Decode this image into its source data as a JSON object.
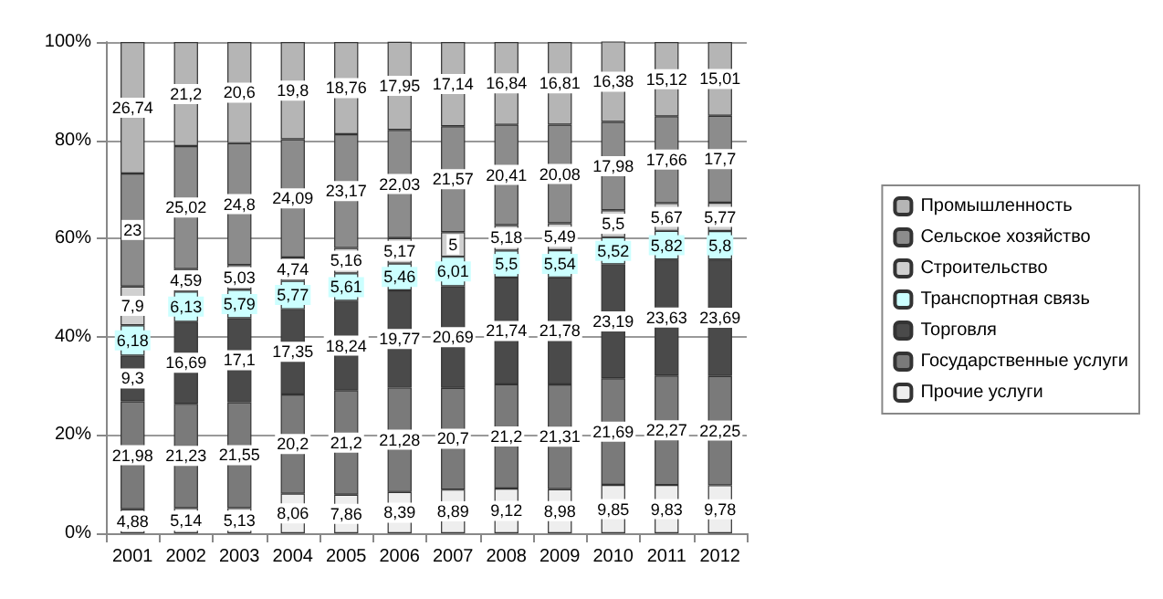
{
  "chart_data": {
    "type": "bar",
    "stacked": true,
    "categories": [
      "2001",
      "2002",
      "2003",
      "2004",
      "2005",
      "2006",
      "2007",
      "2008",
      "2009",
      "2010",
      "2011",
      "2012"
    ],
    "ylim": [
      0,
      100
    ],
    "yticks": [
      {
        "value": 0,
        "label": "0%"
      },
      {
        "value": 20,
        "label": "20%"
      },
      {
        "value": 40,
        "label": "40%"
      },
      {
        "value": 60,
        "label": "60%"
      },
      {
        "value": 80,
        "label": "80%"
      },
      {
        "value": 100,
        "label": "100%"
      }
    ],
    "grid": "y",
    "legend": "right",
    "series": [
      {
        "name": "Прочие услуги",
        "color": "#eeeeee",
        "values": [
          4.88,
          5.14,
          5.13,
          8.06,
          7.86,
          8.39,
          8.89,
          9.12,
          8.98,
          9.85,
          9.83,
          9.78
        ],
        "value_labels": [
          "4,88",
          "5,14",
          "5,13",
          "8,06",
          "7,86",
          "8,39",
          "8,89",
          "9,12",
          "8,98",
          "9,85",
          "9,83",
          "9,78"
        ]
      },
      {
        "name": "Государственные услуги",
        "color": "#7a7a7a",
        "values": [
          21.98,
          21.23,
          21.55,
          20.2,
          21.2,
          21.28,
          20.7,
          21.2,
          21.31,
          21.69,
          22.27,
          22.25
        ],
        "value_labels": [
          "21,98",
          "21,23",
          "21,55",
          "20,2",
          "21,2",
          "21,28",
          "20,7",
          "21,2",
          "21,31",
          "21,69",
          "22,27",
          "22,25"
        ]
      },
      {
        "name": "Торговля",
        "color": "#4a4a4a",
        "values": [
          9.3,
          16.69,
          17.1,
          17.35,
          18.24,
          19.77,
          20.69,
          21.74,
          21.78,
          23.19,
          23.63,
          23.69
        ],
        "value_labels": [
          "9,3",
          "16,69",
          "17,1",
          "17,35",
          "18,24",
          "19,77",
          "20,69",
          "21,74",
          "21,78",
          "23,19",
          "23,63",
          "23,69"
        ]
      },
      {
        "name": "Транспортная связь",
        "color": "#ccffff",
        "values": [
          6.18,
          6.13,
          5.79,
          5.77,
          5.61,
          5.46,
          6.01,
          5.5,
          5.54,
          5.52,
          5.82,
          5.8
        ],
        "value_labels": [
          "6,18",
          "6,13",
          "5,79",
          "5,77",
          "5,61",
          "5,46",
          "6,01",
          "5,5",
          "5,54",
          "5,52",
          "5,82",
          "5,8"
        ]
      },
      {
        "name": "Строительство",
        "color": "#d0d0d0",
        "values": [
          7.9,
          4.59,
          5.03,
          4.74,
          5.16,
          5.17,
          5,
          5.18,
          5.49,
          5.5,
          5.67,
          5.77
        ],
        "value_labels": [
          "7,9",
          "4,59",
          "5,03",
          "4,74",
          "5,16",
          "5,17",
          "5",
          "5,18",
          "5,49",
          "5,5",
          "5,67",
          "5,77"
        ]
      },
      {
        "name": "Сельское хозяйство",
        "color": "#8c8c8c",
        "values": [
          23,
          25.02,
          24.8,
          24.09,
          23.17,
          22.03,
          21.57,
          20.41,
          20.08,
          17.98,
          17.66,
          17.7
        ],
        "value_labels": [
          "23",
          "25,02",
          "24,8",
          "24,09",
          "23,17",
          "22,03",
          "21,57",
          "20,41",
          "20,08",
          "17,98",
          "17,66",
          "17,7"
        ]
      },
      {
        "name": "Промышленность",
        "color": "#b5b5b5",
        "values": [
          26.74,
          21.2,
          20.6,
          19.8,
          18.76,
          17.95,
          17.14,
          16.84,
          16.81,
          16.38,
          15.12,
          15.01
        ],
        "value_labels": [
          "26,74",
          "21,2",
          "20,6",
          "19,8",
          "18,76",
          "17,95",
          "17,14",
          "16,84",
          "16,81",
          "16,38",
          "15,12",
          "15,01"
        ]
      }
    ]
  }
}
